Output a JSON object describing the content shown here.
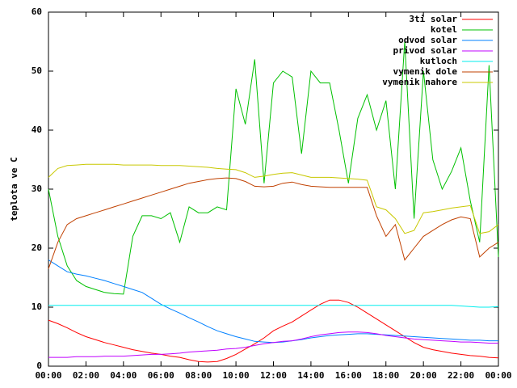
{
  "chart_data": {
    "type": "line",
    "ylabel": "teplota ve C",
    "x": [
      0,
      0.5,
      1,
      1.5,
      2,
      2.5,
      3,
      3.5,
      4,
      4.5,
      5,
      5.5,
      6,
      6.5,
      7,
      7.5,
      8,
      8.5,
      9,
      9.5,
      10,
      10.5,
      11,
      11.5,
      12,
      12.5,
      13,
      13.5,
      14,
      14.5,
      15,
      15.5,
      16,
      16.5,
      17,
      17.5,
      18,
      18.5,
      19,
      19.5,
      20,
      20.5,
      21,
      21.5,
      22,
      22.5,
      23,
      23.5,
      24
    ],
    "xlim": [
      0,
      24
    ],
    "xticks": [
      {
        "value": 0,
        "label": "00:00"
      },
      {
        "value": 2,
        "label": "02:00"
      },
      {
        "value": 4,
        "label": "04:00"
      },
      {
        "value": 6,
        "label": "06:00"
      },
      {
        "value": 8,
        "label": "08:00"
      },
      {
        "value": 10,
        "label": "10:00"
      },
      {
        "value": 12,
        "label": "12:00"
      },
      {
        "value": 14,
        "label": "14:00"
      },
      {
        "value": 16,
        "label": "16:00"
      },
      {
        "value": 18,
        "label": "18:00"
      },
      {
        "value": 20,
        "label": "20:00"
      },
      {
        "value": 22,
        "label": "22:00"
      },
      {
        "value": 24,
        "label": "00:00"
      }
    ],
    "ylim": [
      0,
      60
    ],
    "yticks": [
      0,
      10,
      20,
      30,
      40,
      50,
      60
    ],
    "legend": "top-right",
    "series": [
      {
        "name": "3ti solar",
        "color": "#ff0000",
        "values": [
          7.8,
          7.2,
          6.5,
          5.7,
          5,
          4.5,
          4,
          3.6,
          3.2,
          2.8,
          2.5,
          2.2,
          2,
          1.7,
          1.5,
          1.1,
          0.8,
          0.7,
          0.8,
          1.3,
          2,
          2.9,
          3.8,
          4.8,
          6,
          6.8,
          7.5,
          8.5,
          9.5,
          10.5,
          11.2,
          11.2,
          10.8,
          10,
          9,
          8,
          7,
          6,
          5,
          4,
          3.2,
          2.8,
          2.5,
          2.2,
          2,
          1.8,
          1.7,
          1.5,
          1.4
        ]
      },
      {
        "name": "kotel",
        "color": "#00c000",
        "values": [
          30,
          22,
          17,
          14.5,
          13.5,
          13,
          12.5,
          12.3,
          12.2,
          22,
          25.5,
          25.5,
          25,
          26,
          21,
          27,
          26,
          26,
          27,
          26.5,
          47,
          41,
          52,
          31,
          48,
          50,
          49,
          36,
          50,
          48,
          48,
          40,
          31,
          42,
          46,
          40,
          45,
          30,
          55,
          25,
          50,
          35,
          30,
          33,
          37,
          28,
          21,
          51,
          18.5
        ]
      },
      {
        "name": "odvod solar",
        "color": "#0080ff",
        "values": [
          18,
          17,
          16,
          15.6,
          15.3,
          14.9,
          14.5,
          14,
          13.5,
          13,
          12.5,
          11.5,
          10.5,
          9.7,
          9,
          8.2,
          7.5,
          6.7,
          6,
          5.5,
          5,
          4.6,
          4.2,
          4.1,
          4,
          4.1,
          4.3,
          4.5,
          4.8,
          5,
          5.2,
          5.3,
          5.4,
          5.5,
          5.5,
          5.4,
          5.3,
          5.2,
          5.1,
          5,
          4.9,
          4.8,
          4.7,
          4.6,
          4.5,
          4.4,
          4.4,
          4.3,
          4.3
        ]
      },
      {
        "name": "privod solar",
        "color": "#c000ff",
        "values": [
          1.5,
          1.5,
          1.5,
          1.6,
          1.6,
          1.6,
          1.7,
          1.7,
          1.7,
          1.8,
          1.9,
          2,
          2,
          2.1,
          2.2,
          2.4,
          2.5,
          2.6,
          2.7,
          2.9,
          3,
          3.2,
          3.5,
          3.8,
          4,
          4.2,
          4.3,
          4.6,
          5,
          5.3,
          5.5,
          5.7,
          5.8,
          5.8,
          5.7,
          5.5,
          5.2,
          5,
          4.8,
          4.6,
          4.5,
          4.4,
          4.3,
          4.2,
          4.1,
          4.1,
          4,
          3.9,
          3.9
        ]
      },
      {
        "name": "kutloch",
        "color": "#00eeee",
        "values": [
          10.3,
          10.3,
          10.3,
          10.3,
          10.3,
          10.3,
          10.3,
          10.3,
          10.3,
          10.3,
          10.3,
          10.3,
          10.3,
          10.3,
          10.3,
          10.3,
          10.3,
          10.3,
          10.3,
          10.3,
          10.3,
          10.3,
          10.3,
          10.3,
          10.3,
          10.3,
          10.3,
          10.3,
          10.3,
          10.3,
          10.3,
          10.3,
          10.3,
          10.3,
          10.3,
          10.3,
          10.3,
          10.3,
          10.3,
          10.3,
          10.3,
          10.3,
          10.3,
          10.3,
          10.2,
          10.1,
          10,
          10,
          10.1
        ]
      },
      {
        "name": "vymenik dole",
        "color": "#c04000",
        "values": [
          16.5,
          21,
          24,
          25,
          25.5,
          26,
          26.5,
          27,
          27.5,
          28,
          28.5,
          29,
          29.5,
          30,
          30.5,
          31,
          31.3,
          31.6,
          31.8,
          31.9,
          31.8,
          31.3,
          30.5,
          30.4,
          30.5,
          31,
          31.2,
          30.8,
          30.5,
          30.4,
          30.3,
          30.3,
          30.3,
          30.3,
          30.3,
          25.5,
          22,
          24,
          18,
          20,
          22,
          23,
          24,
          24.8,
          25.3,
          25,
          18.5,
          20,
          21
        ]
      },
      {
        "name": "vymenik nahore",
        "color": "#c8c800",
        "values": [
          32,
          33.5,
          34,
          34.1,
          34.2,
          34.2,
          34.2,
          34.2,
          34.1,
          34.1,
          34.1,
          34.1,
          34,
          34,
          34,
          33.9,
          33.8,
          33.7,
          33.5,
          33.4,
          33.3,
          32.8,
          32,
          32.2,
          32.5,
          32.7,
          32.8,
          32.4,
          32,
          32,
          32,
          31.9,
          31.8,
          31.7,
          31.5,
          27,
          26.5,
          25,
          22.5,
          23,
          26,
          26.2,
          26.5,
          26.8,
          27,
          27.2,
          22.5,
          22.8,
          24
        ]
      }
    ]
  }
}
